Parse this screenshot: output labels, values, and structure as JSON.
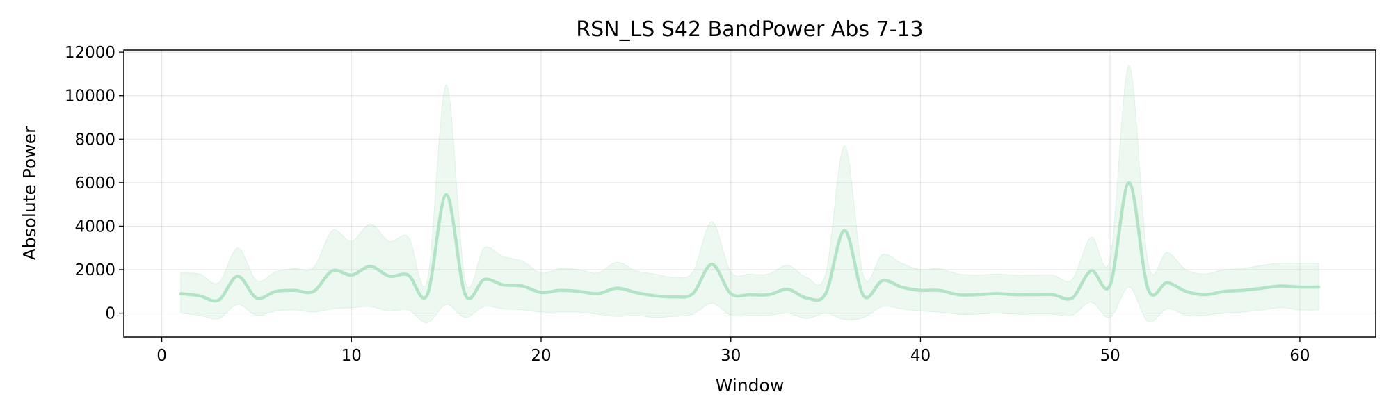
{
  "chart_data": {
    "type": "line",
    "title": "RSN_LS S42 BandPower Abs 7-13",
    "xlabel": "Window",
    "ylabel": "Absolute Power",
    "xlim": [
      -2,
      64
    ],
    "ylim": [
      -1100,
      12100
    ],
    "x_ticks": [
      0,
      10,
      20,
      30,
      40,
      50,
      60
    ],
    "y_ticks": [
      0,
      2000,
      4000,
      6000,
      8000,
      10000,
      12000
    ],
    "grid": true,
    "line_color": "#b2e3c4",
    "band_color": "#b2e3c4",
    "series": [
      {
        "x": [
          1,
          2,
          3,
          4,
          5,
          6,
          7,
          8,
          9,
          10,
          11,
          12,
          13,
          14,
          15,
          16,
          17,
          18,
          19,
          20,
          21,
          22,
          23,
          24,
          25,
          26,
          27,
          28,
          29,
          30,
          31,
          32,
          33,
          34,
          35,
          36,
          37,
          38,
          39,
          40,
          41,
          42,
          43,
          44,
          45,
          46,
          47,
          48,
          49,
          50,
          51,
          52,
          53,
          54,
          55,
          56,
          57,
          58,
          59,
          60,
          61
        ],
        "mean": [
          900,
          800,
          600,
          1700,
          700,
          1000,
          1050,
          1000,
          1950,
          1750,
          2150,
          1700,
          1750,
          850,
          5450,
          850,
          1550,
          1300,
          1250,
          950,
          1050,
          1000,
          900,
          1150,
          950,
          800,
          750,
          900,
          2250,
          900,
          850,
          850,
          1100,
          700,
          900,
          3800,
          800,
          1500,
          1200,
          1050,
          1050,
          850,
          850,
          900,
          850,
          850,
          850,
          700,
          1950,
          1300,
          6000,
          1100,
          1400,
          1000,
          850,
          1000,
          1050,
          1150,
          1250,
          1200,
          1200
        ],
        "lower": [
          0,
          -100,
          -250,
          400,
          -100,
          100,
          150,
          50,
          200,
          250,
          300,
          100,
          150,
          -450,
          400,
          -200,
          300,
          200,
          150,
          50,
          50,
          50,
          -50,
          -150,
          -100,
          -200,
          -150,
          -50,
          450,
          -100,
          -100,
          -100,
          0,
          -250,
          0,
          -300,
          -200,
          300,
          200,
          100,
          50,
          -50,
          -50,
          0,
          -50,
          -50,
          -50,
          -100,
          500,
          -200,
          1200,
          -400,
          200,
          -100,
          -100,
          0,
          50,
          150,
          250,
          150,
          150
        ],
        "upper": [
          1850,
          1800,
          1400,
          3000,
          1500,
          1900,
          2050,
          2100,
          3800,
          3300,
          4100,
          3300,
          3500,
          1500,
          10500,
          1500,
          3000,
          2600,
          2400,
          1850,
          2050,
          2000,
          1850,
          2350,
          1950,
          1800,
          1650,
          1900,
          4200,
          1900,
          1800,
          1800,
          2200,
          1650,
          1800,
          7700,
          1700,
          2700,
          2300,
          2000,
          2050,
          1800,
          1750,
          1800,
          1750,
          1750,
          1750,
          1550,
          3500,
          2500,
          11400,
          2300,
          2800,
          2000,
          1800,
          2000,
          2050,
          2200,
          2300,
          2300,
          2300
        ]
      }
    ]
  }
}
